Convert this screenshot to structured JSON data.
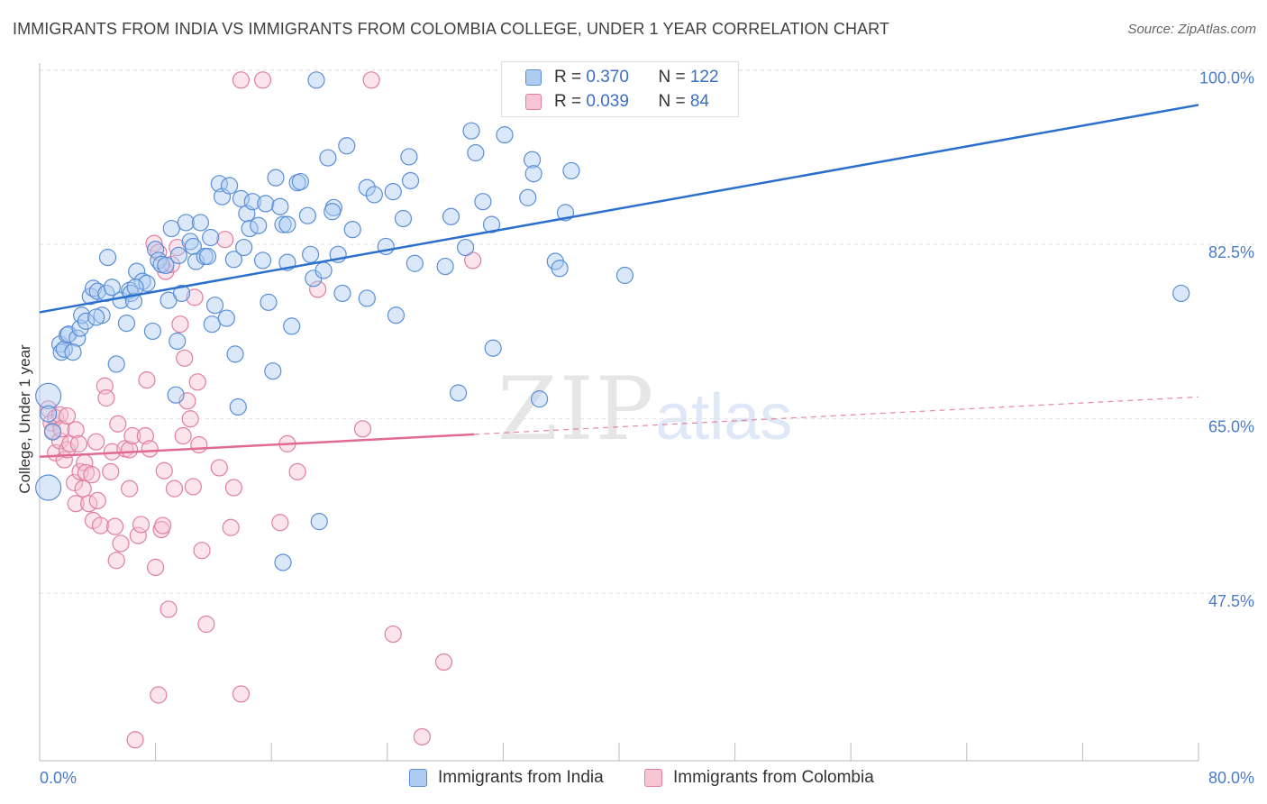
{
  "header": {
    "title": "IMMIGRANTS FROM INDIA VS IMMIGRANTS FROM COLOMBIA COLLEGE, UNDER 1 YEAR CORRELATION CHART",
    "source": "Source: ZipAtlas.com"
  },
  "watermark": {
    "zip": "ZIP",
    "atlas": "atlas"
  },
  "legend": {
    "india": {
      "r_label": "R = ",
      "r_value": "0.370",
      "n_label": "N = ",
      "n_value": "122"
    },
    "colombia": {
      "r_label": "R = ",
      "r_value": "0.039",
      "n_label": "N = ",
      "n_value": "84"
    }
  },
  "colors": {
    "india_fill": "#aecbf2",
    "india_stroke": "#5a8fd6",
    "india_line": "#2a6fcc",
    "colombia_fill": "#f7c4d4",
    "colombia_stroke": "#e07fa0",
    "colombia_line": "#e06a94",
    "tick_label": "#4a7bc8",
    "grid": "#e4e4e4",
    "axis": "#bbbbbb"
  },
  "chart_data": {
    "type": "scatter",
    "title": "IMMIGRANTS FROM INDIA VS IMMIGRANTS FROM COLOMBIA COLLEGE, UNDER 1 YEAR CORRELATION CHART",
    "xlabel": "",
    "ylabel": "College, Under 1 year",
    "xlim": [
      0,
      80
    ],
    "ylim": [
      31.5,
      101.5
    ],
    "x_tick_labels": [
      "0.0%",
      "80.0%"
    ],
    "y_ticks": [
      47.5,
      65.0,
      82.5,
      100.0
    ],
    "y_tick_labels": [
      "47.5%",
      "65.0%",
      "82.5%",
      "100.0%"
    ],
    "legend_position": "top-center",
    "series": [
      {
        "name": "Immigrants from India",
        "R": 0.37,
        "N": 122,
        "trend": {
          "x": [
            0,
            80
          ],
          "y": [
            76.5,
            97.3
          ],
          "dashed_from": null
        },
        "points": [
          [
            0.6,
            68.1
          ],
          [
            0.6,
            66.3
          ],
          [
            0.6,
            58.9
          ],
          [
            0.9,
            64.5
          ],
          [
            1.4,
            73.3
          ],
          [
            1.5,
            72.5
          ],
          [
            1.7,
            72.8
          ],
          [
            1.9,
            74.2
          ],
          [
            2.0,
            74.3
          ],
          [
            2.6,
            73.9
          ],
          [
            2.8,
            74.9
          ],
          [
            2.9,
            76.2
          ],
          [
            3.2,
            75.6
          ],
          [
            3.5,
            78.1
          ],
          [
            3.7,
            78.9
          ],
          [
            4.0,
            78.6
          ],
          [
            4.3,
            76.2
          ],
          [
            4.6,
            78.4
          ],
          [
            4.7,
            82.0
          ],
          [
            5.0,
            79.0
          ],
          [
            5.3,
            71.3
          ],
          [
            5.6,
            77.7
          ],
          [
            6.0,
            75.4
          ],
          [
            6.2,
            78.7
          ],
          [
            6.3,
            78.4
          ],
          [
            6.5,
            77.6
          ],
          [
            6.7,
            80.6
          ],
          [
            7.1,
            79.6
          ],
          [
            7.4,
            79.4
          ],
          [
            7.8,
            74.6
          ],
          [
            8.0,
            82.8
          ],
          [
            8.2,
            81.7
          ],
          [
            8.4,
            81.3
          ],
          [
            8.7,
            81.2
          ],
          [
            8.9,
            77.7
          ],
          [
            9.1,
            84.9
          ],
          [
            9.4,
            68.2
          ],
          [
            9.5,
            73.6
          ],
          [
            9.8,
            78.4
          ],
          [
            10.1,
            85.5
          ],
          [
            10.4,
            83.6
          ],
          [
            10.6,
            83.1
          ],
          [
            10.8,
            81.6
          ],
          [
            11.1,
            85.5
          ],
          [
            11.4,
            82.1
          ],
          [
            11.6,
            82.1
          ],
          [
            11.9,
            75.3
          ],
          [
            12.1,
            77.2
          ],
          [
            12.4,
            89.4
          ],
          [
            12.6,
            88.1
          ],
          [
            12.9,
            75.9
          ],
          [
            13.1,
            89.2
          ],
          [
            13.4,
            81.8
          ],
          [
            13.5,
            72.3
          ],
          [
            13.7,
            67.0
          ],
          [
            13.9,
            87.9
          ],
          [
            14.1,
            83.0
          ],
          [
            14.3,
            86.4
          ],
          [
            14.5,
            84.9
          ],
          [
            14.7,
            87.6
          ],
          [
            15.1,
            85.2
          ],
          [
            15.4,
            81.7
          ],
          [
            15.6,
            87.4
          ],
          [
            15.8,
            77.5
          ],
          [
            16.1,
            70.6
          ],
          [
            16.3,
            90.0
          ],
          [
            16.6,
            87.1
          ],
          [
            16.8,
            85.3
          ],
          [
            17.1,
            85.3
          ],
          [
            17.1,
            81.5
          ],
          [
            17.4,
            75.1
          ],
          [
            17.8,
            89.5
          ],
          [
            18.0,
            89.6
          ],
          [
            18.5,
            86.2
          ],
          [
            18.7,
            82.3
          ],
          [
            18.9,
            79.9
          ],
          [
            19.1,
            99.8
          ],
          [
            19.3,
            55.5
          ],
          [
            19.6,
            80.7
          ],
          [
            19.9,
            92.0
          ],
          [
            20.3,
            87.0
          ],
          [
            20.6,
            82.3
          ],
          [
            20.9,
            78.4
          ],
          [
            21.2,
            93.2
          ],
          [
            21.6,
            84.8
          ],
          [
            22.6,
            77.9
          ],
          [
            22.6,
            89.0
          ],
          [
            23.1,
            88.3
          ],
          [
            23.9,
            83.1
          ],
          [
            24.4,
            88.6
          ],
          [
            24.6,
            76.2
          ],
          [
            25.1,
            85.9
          ],
          [
            25.5,
            92.1
          ],
          [
            25.6,
            89.7
          ],
          [
            25.9,
            81.4
          ],
          [
            28.0,
            81.1
          ],
          [
            28.4,
            86.1
          ],
          [
            28.9,
            68.4
          ],
          [
            29.4,
            83.0
          ],
          [
            29.8,
            94.7
          ],
          [
            30.1,
            92.5
          ],
          [
            30.6,
            87.6
          ],
          [
            31.3,
            72.9
          ],
          [
            32.1,
            94.3
          ],
          [
            33.7,
            88.0
          ],
          [
            34.0,
            91.8
          ],
          [
            34.1,
            90.4
          ],
          [
            34.5,
            67.8
          ],
          [
            35.6,
            81.6
          ],
          [
            35.9,
            80.9
          ],
          [
            36.3,
            86.5
          ],
          [
            36.7,
            90.7
          ],
          [
            40.4,
            80.2
          ],
          [
            78.8,
            78.4
          ],
          [
            11.8,
            84.0
          ],
          [
            16.8,
            51.4
          ],
          [
            2.3,
            72.5
          ],
          [
            9.6,
            82.2
          ],
          [
            6.6,
            79.0
          ],
          [
            3.9,
            76.0
          ],
          [
            20.2,
            86.6
          ],
          [
            31.2,
            85.3
          ]
        ]
      },
      {
        "name": "Immigrants from Colombia",
        "R": 0.039,
        "N": 84,
        "trend": {
          "x": [
            0,
            80
          ],
          "y": [
            62.0,
            68.0
          ],
          "dashed_from": 30.0
        },
        "points": [
          [
            0.6,
            66.8
          ],
          [
            0.8,
            65.4
          ],
          [
            0.9,
            64.6
          ],
          [
            1.1,
            62.4
          ],
          [
            1.1,
            65.9
          ],
          [
            1.4,
            66.2
          ],
          [
            1.4,
            63.6
          ],
          [
            1.5,
            64.8
          ],
          [
            1.7,
            61.7
          ],
          [
            1.9,
            62.7
          ],
          [
            1.9,
            66.1
          ],
          [
            2.1,
            63.3
          ],
          [
            2.4,
            59.4
          ],
          [
            2.5,
            57.3
          ],
          [
            2.5,
            64.7
          ],
          [
            2.7,
            63.3
          ],
          [
            2.8,
            60.5
          ],
          [
            3.0,
            58.8
          ],
          [
            3.1,
            61.4
          ],
          [
            3.2,
            60.4
          ],
          [
            3.4,
            57.3
          ],
          [
            3.6,
            60.2
          ],
          [
            3.7,
            55.6
          ],
          [
            3.9,
            63.5
          ],
          [
            4.0,
            57.6
          ],
          [
            4.2,
            55.1
          ],
          [
            4.5,
            69.1
          ],
          [
            4.6,
            67.9
          ],
          [
            4.9,
            60.5
          ],
          [
            5.0,
            62.5
          ],
          [
            5.2,
            55.0
          ],
          [
            5.3,
            51.6
          ],
          [
            5.4,
            65.3
          ],
          [
            5.6,
            53.3
          ],
          [
            5.9,
            62.8
          ],
          [
            6.2,
            62.7
          ],
          [
            6.2,
            58.8
          ],
          [
            6.4,
            64.1
          ],
          [
            6.6,
            33.6
          ],
          [
            6.8,
            54.1
          ],
          [
            7.0,
            55.2
          ],
          [
            7.3,
            64.1
          ],
          [
            7.4,
            69.7
          ],
          [
            7.6,
            62.8
          ],
          [
            7.9,
            83.4
          ],
          [
            8.0,
            50.9
          ],
          [
            8.2,
            38.1
          ],
          [
            8.4,
            54.7
          ],
          [
            8.5,
            55.1
          ],
          [
            8.6,
            60.6
          ],
          [
            8.7,
            80.6
          ],
          [
            8.9,
            46.7
          ],
          [
            9.1,
            81.3
          ],
          [
            9.3,
            58.8
          ],
          [
            9.5,
            83.0
          ],
          [
            9.7,
            75.3
          ],
          [
            9.9,
            64.1
          ],
          [
            10.0,
            71.9
          ],
          [
            10.2,
            67.6
          ],
          [
            10.4,
            65.8
          ],
          [
            10.6,
            59.0
          ],
          [
            10.7,
            78.0
          ],
          [
            10.9,
            69.5
          ],
          [
            11.0,
            63.2
          ],
          [
            11.2,
            52.6
          ],
          [
            11.5,
            45.2
          ],
          [
            12.8,
            83.8
          ],
          [
            13.2,
            54.9
          ],
          [
            13.4,
            58.9
          ],
          [
            13.9,
            38.2
          ],
          [
            13.9,
            99.8
          ],
          [
            15.4,
            99.8
          ],
          [
            16.6,
            55.4
          ],
          [
            17.1,
            63.3
          ],
          [
            17.8,
            60.5
          ],
          [
            19.2,
            78.8
          ],
          [
            22.3,
            64.8
          ],
          [
            24.4,
            44.2
          ],
          [
            26.4,
            33.9
          ],
          [
            27.9,
            41.4
          ],
          [
            29.9,
            81.7
          ],
          [
            22.9,
            99.8
          ],
          [
            8.2,
            82.5
          ],
          [
            12.4,
            60.9
          ]
        ]
      }
    ]
  },
  "bottom_legend": {
    "india": "Immigrants from India",
    "colombia": "Immigrants from Colombia"
  }
}
